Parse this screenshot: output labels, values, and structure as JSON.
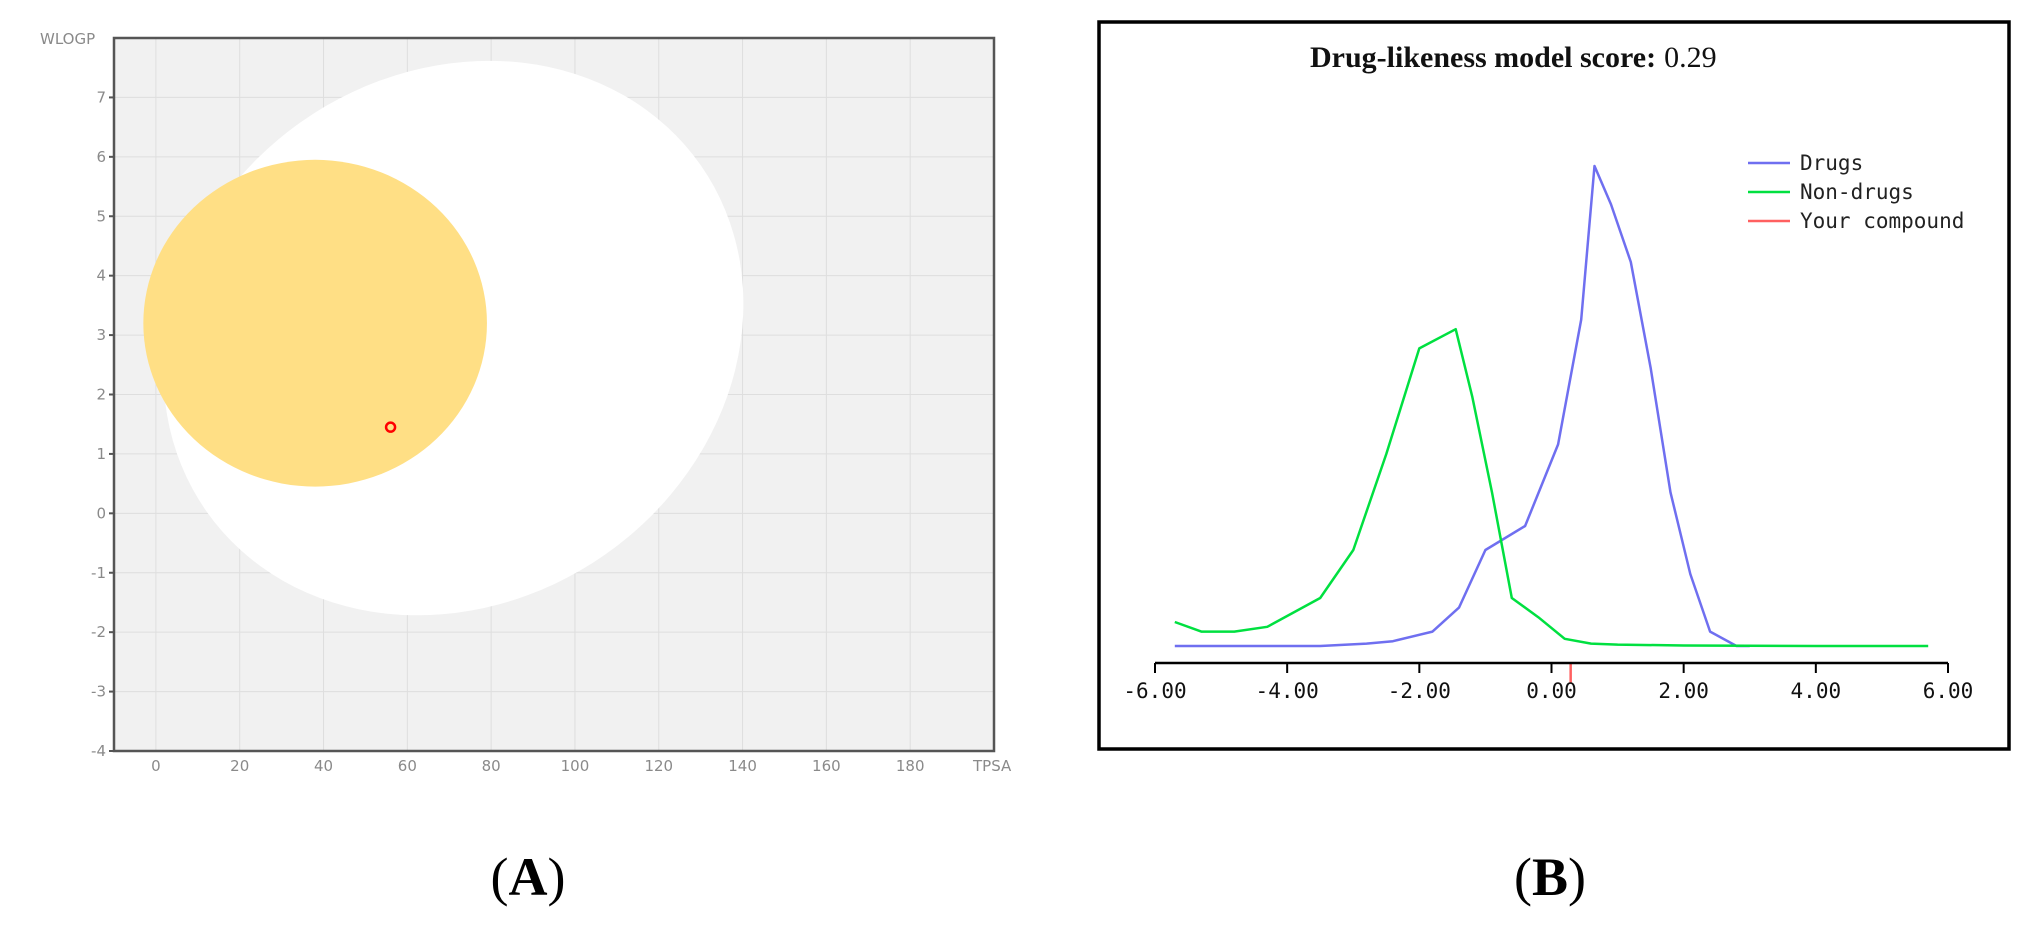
{
  "colors": {
    "plot_bg": "#f1f1f1",
    "egg_white": "#ffffff",
    "egg_yolk": "#ffdf85",
    "compound": "#ff0000",
    "drugs": "#6f6ff0",
    "non_drugs": "#00e040",
    "your_compound": "#ff6060"
  },
  "panels": {
    "a_label_open": "(",
    "a_label_letter": "A",
    "a_label_close": ")",
    "b_label_open": "(",
    "b_label_letter": "B",
    "b_label_close": ")"
  },
  "chart_data": [
    {
      "type": "scatter",
      "xlabel": "TPSA",
      "ylabel": "WLOGP",
      "xlim": [
        -10,
        200
      ],
      "ylim": [
        -4,
        8
      ],
      "xticks": [
        0,
        20,
        40,
        60,
        80,
        100,
        120,
        140,
        160,
        180
      ],
      "yticks": [
        -4,
        -3,
        -2,
        -1,
        0,
        1,
        2,
        3,
        4,
        5,
        6,
        7
      ],
      "grid": true,
      "regions": [
        {
          "name": "white",
          "kind": "ellipse",
          "cx": 71,
          "cy": 2.95,
          "rx": 72,
          "ry": 4.45,
          "rotation": -35
        },
        {
          "name": "yolk",
          "kind": "ellipse",
          "cx": 38,
          "cy": 3.2,
          "rx": 41,
          "ry": 2.75,
          "rotation": 0
        }
      ],
      "points": [
        {
          "x": 56,
          "y": 1.45
        }
      ]
    },
    {
      "type": "line",
      "title_bold": "Drug-likeness model score:",
      "title_value": "0.29",
      "xlim": [
        -6,
        6
      ],
      "xticks": [
        "-6.00",
        "-4.00",
        "-2.00",
        "0.00",
        "2.00",
        "4.00",
        "6.00"
      ],
      "ylim": [
        0,
        1
      ],
      "legend_position": "top-right",
      "series": [
        {
          "name": "Drugs",
          "x": [
            -5.7,
            -3.5,
            -2.8,
            -2.4,
            -1.8,
            -1.4,
            -1.0,
            -0.4,
            0.1,
            0.45,
            0.65,
            0.9,
            1.2,
            1.5,
            1.8,
            2.1,
            2.4,
            2.8,
            3.0
          ],
          "y": [
            0.0,
            0.0,
            0.005,
            0.01,
            0.03,
            0.08,
            0.2,
            0.25,
            0.42,
            0.68,
            1.0,
            0.92,
            0.8,
            0.58,
            0.32,
            0.15,
            0.03,
            0.0,
            0.0
          ]
        },
        {
          "name": "Non-drugs",
          "x": [
            -5.7,
            -5.3,
            -4.8,
            -4.3,
            -3.5,
            -3.0,
            -2.5,
            -2.0,
            -1.45,
            -1.2,
            -0.9,
            -0.6,
            -0.2,
            0.2,
            0.6,
            1.0,
            2.0,
            4.0,
            5.7
          ],
          "y": [
            0.05,
            0.03,
            0.03,
            0.04,
            0.1,
            0.2,
            0.4,
            0.62,
            0.66,
            0.52,
            0.32,
            0.1,
            0.06,
            0.015,
            0.005,
            0.003,
            0.001,
            0.0,
            0.0
          ]
        },
        {
          "name": "Your compound",
          "x": [
            0.29
          ],
          "y": [
            0
          ]
        }
      ]
    }
  ]
}
